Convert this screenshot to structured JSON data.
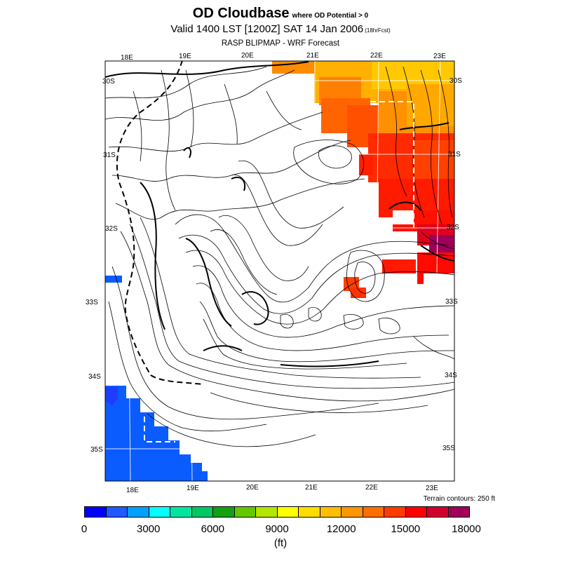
{
  "title": {
    "main": "OD Cloudbase",
    "qualifier": "where OD Potential > 0",
    "valid": "Valid 1400 LST [1200Z] SAT 14 Jan 2006",
    "forecast": "(18hrFcst)",
    "model": "RASP BLIPMAP - WRF Forecast"
  },
  "map": {
    "lon_labels_top": [
      "18E",
      "19E",
      "20E",
      "21E",
      "22E",
      "23E"
    ],
    "lon_labels_bottom": [
      "18E",
      "19E",
      "20E",
      "21E",
      "22E",
      "23E"
    ],
    "lat_labels_left": [
      "30S",
      "31S",
      "32S",
      "33S",
      "34S",
      "35S"
    ],
    "lat_labels_right": [
      "30S",
      "31S",
      "32S",
      "33S",
      "34S",
      "35S"
    ],
    "terrain_note": "Terrain contours: 250 ft",
    "colors": {
      "blue_region": "#0a5cff",
      "dark_blue": "#1e3cff",
      "orange_light": "#ffc000",
      "orange": "#ff8c00",
      "orange_red": "#ff5a00",
      "red": "#ff1a00",
      "crimson": "#d8002c",
      "maroon": "#a0005a",
      "grid_line": "#ffffff",
      "contour": "#000000"
    }
  },
  "colorbar": {
    "colors": [
      "#0000ff",
      "#1e5aff",
      "#00a0ff",
      "#00ffff",
      "#00e6a0",
      "#00c864",
      "#14a014",
      "#64c800",
      "#b4e600",
      "#ffff00",
      "#ffdc00",
      "#ffbe00",
      "#ff9600",
      "#ff6e00",
      "#ff3c00",
      "#ff0000",
      "#d2002d",
      "#a0005a"
    ],
    "tick_labels": [
      "0",
      "3000",
      "6000",
      "9000",
      "12000",
      "15000",
      "18000"
    ],
    "units": "(ft)"
  }
}
